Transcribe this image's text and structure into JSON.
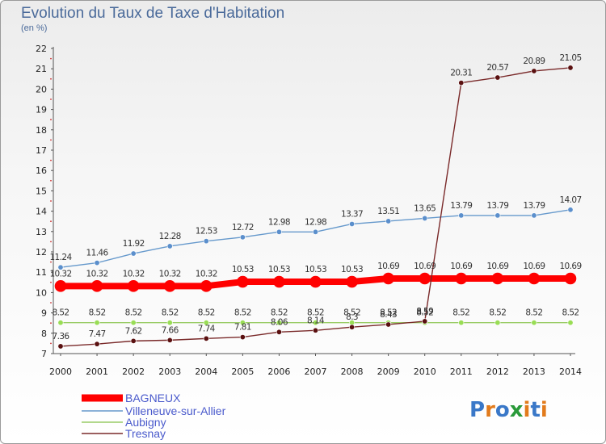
{
  "header": {
    "title": "Evolution du Taux de Taxe d'Habitation",
    "subtitle": "(en %)"
  },
  "logo": {
    "text": "Proxiti"
  },
  "chart_data": {
    "type": "line",
    "title": "Evolution du Taux de Taxe d'Habitation",
    "ylabel": "(en %)",
    "xlabel": "",
    "ylim": [
      7,
      22
    ],
    "yticks": [
      7,
      8,
      9,
      10,
      11,
      12,
      13,
      14,
      15,
      16,
      17,
      18,
      19,
      20,
      21,
      22
    ],
    "x": [
      2000,
      2001,
      2002,
      2003,
      2004,
      2005,
      2006,
      2007,
      2008,
      2009,
      2010,
      2011,
      2012,
      2013,
      2014
    ],
    "legend_position": "bottom-left",
    "grid": false,
    "series": [
      {
        "name": "BAGNEUX",
        "color": "#ff0000",
        "values": [
          10.32,
          10.32,
          10.32,
          10.32,
          10.32,
          10.53,
          10.53,
          10.53,
          10.53,
          10.69,
          10.69,
          10.69,
          10.69,
          10.69,
          10.69
        ],
        "labels": [
          "10.32",
          "10.32",
          "10.32",
          "10.32",
          "10.32",
          "10.53",
          "10.53",
          "10.53",
          "10.53",
          "10.69",
          "10.69",
          "10.69",
          "10.69",
          "10.69",
          "10.69"
        ]
      },
      {
        "name": "Villeneuve-sur-Allier",
        "color": "#6699cc",
        "values": [
          11.24,
          11.46,
          11.92,
          12.28,
          12.53,
          12.72,
          12.98,
          12.98,
          13.37,
          13.51,
          13.65,
          13.79,
          13.79,
          13.79,
          14.07
        ],
        "labels": [
          "11.24",
          "11.46",
          "11.92",
          "12.28",
          "12.53",
          "12.72",
          "12.98",
          "12.98",
          "13.37",
          "13.51",
          "13.65",
          "13.79",
          "13.79",
          "13.79",
          "14.07"
        ]
      },
      {
        "name": "Aubigny",
        "color": "#99cc66",
        "values": [
          8.52,
          8.52,
          8.52,
          8.52,
          8.52,
          8.52,
          8.52,
          8.52,
          8.52,
          8.52,
          8.52,
          8.52,
          8.52,
          8.52,
          8.52
        ],
        "labels": [
          "8.52",
          "8.52",
          "8.52",
          "8.52",
          "8.52",
          "8.52",
          "8.52",
          "8.52",
          "8.52",
          "8.52",
          "8.52",
          "8.52",
          "8.52",
          "8.52",
          "8.52"
        ]
      },
      {
        "name": "Tresnay",
        "color": "#7a2a2a",
        "values": [
          7.36,
          7.47,
          7.62,
          7.66,
          7.74,
          7.81,
          8.06,
          8.14,
          8.3,
          8.43,
          8.59,
          20.31,
          20.57,
          20.89,
          21.05
        ],
        "labels": [
          "7.36",
          "7.47",
          "7.62",
          "7.66",
          "7.74",
          "7.81",
          "8.06",
          "8.14",
          "8.3",
          "8.43",
          "8.59",
          "20.31",
          "20.57",
          "20.89",
          "21.05"
        ]
      }
    ]
  }
}
